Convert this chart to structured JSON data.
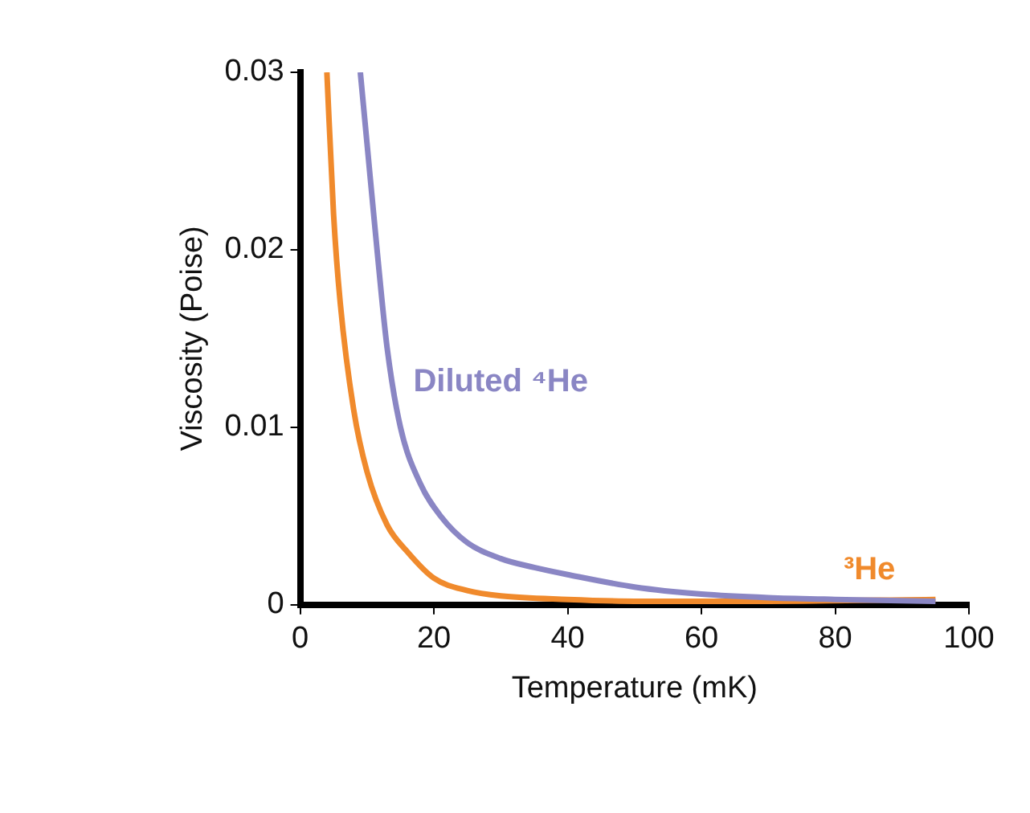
{
  "chart_data": {
    "type": "line",
    "xlabel": "Temperature (mK)",
    "ylabel": "Viscosity (Poise)",
    "xlim": [
      0,
      100
    ],
    "xticks": [
      0,
      20,
      40,
      60,
      80,
      100
    ],
    "ylim": [
      0,
      0.03
    ],
    "yticks": [
      0,
      0.01,
      0.02,
      0.03
    ],
    "grid": false,
    "legend": false,
    "marker": "none",
    "line_style": "solid",
    "series": [
      {
        "name": "Diluted ⁴He",
        "color": "#8a86c4",
        "x": [
          9,
          10,
          11.5,
          13,
          15,
          18,
          21,
          25,
          30,
          35,
          40,
          50,
          60,
          70,
          80,
          95
        ],
        "values": [
          0.03,
          0.026,
          0.02,
          0.0145,
          0.01,
          0.0068,
          0.005,
          0.0035,
          0.0026,
          0.0021,
          0.0017,
          0.001,
          0.0006,
          0.0004,
          0.0003,
          0.0002
        ]
      },
      {
        "name": "³He",
        "color": "#f08a2c",
        "x": [
          4,
          5,
          6,
          8,
          10,
          13,
          16,
          20,
          25,
          30,
          40,
          50,
          70,
          95
        ],
        "values": [
          0.03,
          0.022,
          0.017,
          0.011,
          0.0075,
          0.0045,
          0.003,
          0.0015,
          0.0008,
          0.0005,
          0.0003,
          0.0002,
          0.0002,
          0.0003
        ]
      }
    ]
  }
}
